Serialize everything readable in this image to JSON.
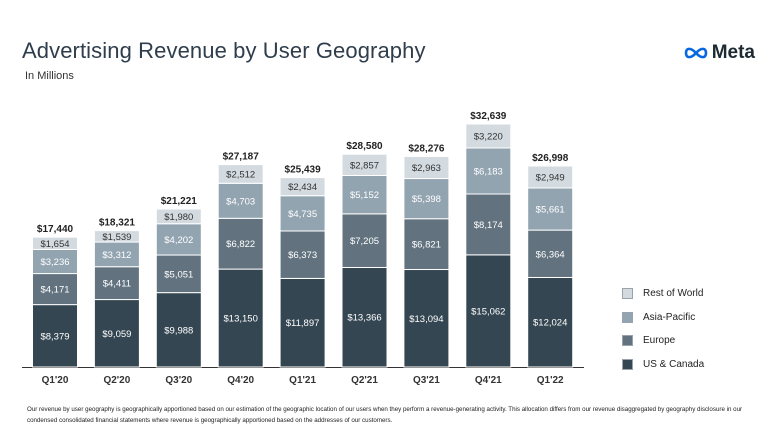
{
  "header": {
    "title": "Advertising Revenue by User Geography",
    "subtitle": "In Millions",
    "logo_text": "Meta"
  },
  "footnote": "Our revenue by user geography is geographically apportioned based on our estimation of the geographic location of our users when they perform a revenue-generating activity. This allocation differs from our revenue disaggregated by geography disclosure in our condensed consolidated financial statements where revenue is geographically apportioned based on the addresses of our customers.",
  "colors": {
    "us_canada": "#344652",
    "europe": "#62737f",
    "asia_pacific": "#93a4b1",
    "rest_of_world": "#d3dbe1",
    "title": "#2f3d4c",
    "logo_blue": "#0668e1"
  },
  "chart_data": {
    "type": "bar",
    "stacked": true,
    "categories": [
      "Q1'20",
      "Q2'20",
      "Q3'20",
      "Q4'20",
      "Q1'21",
      "Q2'21",
      "Q3'21",
      "Q4'21",
      "Q1'22"
    ],
    "series": [
      {
        "name": "US & Canada",
        "color": "#344652",
        "values": [
          8379,
          9059,
          9988,
          13150,
          11897,
          13366,
          13094,
          15062,
          12024
        ]
      },
      {
        "name": "Europe",
        "color": "#62737f",
        "values": [
          4171,
          4411,
          5051,
          6822,
          6373,
          7205,
          6821,
          8174,
          6364
        ]
      },
      {
        "name": "Asia-Pacific",
        "color": "#93a4b1",
        "values": [
          3236,
          3312,
          4202,
          4703,
          4735,
          5152,
          5398,
          6183,
          5661
        ]
      },
      {
        "name": "Rest of World",
        "color": "#d3dbe1",
        "values": [
          1654,
          1539,
          1980,
          2512,
          2434,
          2857,
          2963,
          3220,
          2949
        ]
      }
    ],
    "segment_labels": [
      [
        "$8,379",
        "$9,059",
        "$9,988",
        "$13,150",
        "$11,897",
        "$13,366",
        "$13,094",
        "$15,062",
        "$12,024"
      ],
      [
        "$4,171",
        "$4,411",
        "$5,051",
        "$6,822",
        "$6,373",
        "$7,205",
        "$6,821",
        "$8,174",
        "$6,364"
      ],
      [
        "$3,236",
        "$3,312",
        "$4,202",
        "$4,703",
        "$4,735",
        "$5,152",
        "$5,398",
        "$6,183",
        "$5,661"
      ],
      [
        "$1,654",
        "$1,539",
        "$1,980",
        "$2,512",
        "$2,434",
        "$2,857",
        "$2,963",
        "$3,220",
        "$2,949"
      ]
    ],
    "totals": [
      17440,
      18321,
      21221,
      27187,
      25439,
      28580,
      28276,
      32639,
      26998
    ],
    "total_labels": [
      "$17,440",
      "$18,321",
      "$21,221",
      "$27,187",
      "$25,439",
      "$28,580",
      "$28,276",
      "$32,639",
      "$26,998"
    ],
    "legend": [
      "Rest of World",
      "Asia-Pacific",
      "Europe",
      "US & Canada"
    ],
    "legend_colors": [
      "#d3dbe1",
      "#93a4b1",
      "#62737f",
      "#344652"
    ],
    "legend_position": "right",
    "ylim": [
      0,
      32639
    ],
    "grid": false
  }
}
